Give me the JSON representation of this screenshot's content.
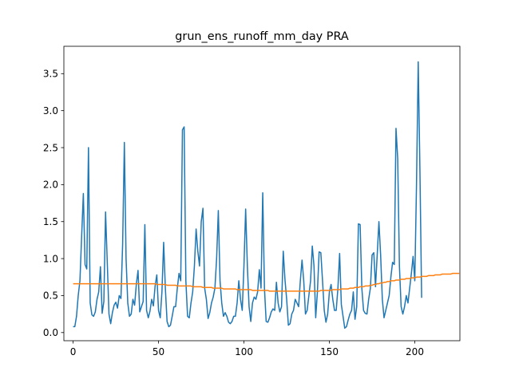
{
  "chart_data": {
    "type": "line",
    "title": "grun_ens_runoff_mm_day PRA",
    "xlabel": "",
    "ylabel": "",
    "xlim": [
      -5.4,
      226.4
    ],
    "ylim": [
      -0.11,
      3.87
    ],
    "x_ticks": [
      0,
      50,
      100,
      150,
      200
    ],
    "y_ticks": [
      0.0,
      0.5,
      1.0,
      1.5,
      2.0,
      2.5,
      3.0,
      3.5
    ],
    "y_tick_labels": [
      "0.0",
      "0.5",
      "1.0",
      "1.5",
      "2.0",
      "2.5",
      "3.0",
      "3.5"
    ],
    "grid": false,
    "legend": "none",
    "series": [
      {
        "color": "#1f77b4",
        "x_start": 0,
        "values": [
          0.08,
          0.08,
          0.22,
          0.5,
          0.7,
          1.3,
          1.88,
          0.92,
          0.86,
          2.5,
          0.4,
          0.24,
          0.22,
          0.28,
          0.45,
          0.55,
          0.89,
          0.26,
          0.42,
          1.63,
          0.95,
          0.25,
          0.12,
          0.27,
          0.37,
          0.41,
          0.33,
          0.5,
          0.46,
          1.2,
          2.57,
          1.0,
          0.4,
          0.22,
          0.25,
          0.45,
          0.37,
          0.65,
          0.84,
          0.28,
          0.35,
          0.42,
          1.46,
          0.3,
          0.2,
          0.29,
          0.45,
          0.36,
          0.63,
          0.78,
          0.3,
          0.2,
          0.55,
          1.22,
          0.6,
          0.15,
          0.08,
          0.1,
          0.22,
          0.35,
          0.35,
          0.6,
          0.8,
          0.7,
          2.74,
          2.78,
          0.7,
          0.22,
          0.2,
          0.4,
          0.55,
          0.9,
          1.4,
          1.1,
          0.9,
          1.5,
          1.68,
          0.6,
          0.45,
          0.19,
          0.27,
          0.4,
          0.48,
          0.6,
          1.0,
          1.65,
          0.7,
          0.4,
          0.22,
          0.27,
          0.22,
          0.14,
          0.12,
          0.15,
          0.22,
          0.22,
          0.4,
          0.7,
          0.45,
          0.3,
          0.9,
          1.67,
          0.9,
          0.35,
          0.15,
          0.4,
          0.48,
          0.45,
          0.55,
          0.85,
          0.6,
          1.89,
          0.6,
          0.15,
          0.14,
          0.2,
          0.28,
          0.32,
          0.3,
          0.68,
          0.4,
          0.28,
          0.35,
          1.1,
          0.72,
          0.45,
          0.1,
          0.12,
          0.25,
          0.3,
          0.45,
          0.4,
          0.35,
          0.7,
          0.98,
          0.7,
          0.25,
          0.3,
          0.5,
          0.7,
          1.17,
          0.9,
          0.2,
          0.55,
          1.09,
          1.08,
          0.7,
          0.3,
          0.14,
          0.25,
          0.55,
          0.65,
          0.45,
          0.3,
          0.3,
          0.6,
          1.07,
          0.38,
          0.22,
          0.06,
          0.08,
          0.17,
          0.25,
          0.3,
          0.55,
          0.18,
          0.35,
          1.47,
          1.46,
          0.6,
          0.3,
          0.26,
          0.25,
          0.45,
          0.6,
          1.05,
          1.08,
          0.62,
          1.05,
          1.5,
          1.05,
          0.45,
          0.2,
          0.3,
          0.4,
          0.5,
          0.75,
          0.95,
          0.92,
          2.76,
          2.35,
          0.9,
          0.35,
          0.25,
          0.35,
          0.5,
          0.4,
          0.6,
          0.8,
          1.03,
          0.7,
          2.0,
          3.66,
          2.2,
          0.47
        ]
      },
      {
        "color": "#ff7f0e",
        "x_start": 0,
        "values": [
          0.66,
          0.66,
          0.66,
          0.66,
          0.66,
          0.66,
          0.66,
          0.66,
          0.66,
          0.66,
          0.66,
          0.66,
          0.66,
          0.66,
          0.66,
          0.66,
          0.66,
          0.66,
          0.66,
          0.66,
          0.66,
          0.66,
          0.66,
          0.66,
          0.66,
          0.66,
          0.66,
          0.66,
          0.66,
          0.66,
          0.66,
          0.66,
          0.66,
          0.66,
          0.66,
          0.66,
          0.66,
          0.66,
          0.66,
          0.66,
          0.66,
          0.66,
          0.66,
          0.66,
          0.66,
          0.66,
          0.66,
          0.66,
          0.66,
          0.65,
          0.65,
          0.65,
          0.65,
          0.65,
          0.65,
          0.64,
          0.64,
          0.64,
          0.64,
          0.64,
          0.64,
          0.63,
          0.63,
          0.63,
          0.63,
          0.63,
          0.63,
          0.63,
          0.63,
          0.63,
          0.62,
          0.62,
          0.62,
          0.62,
          0.62,
          0.62,
          0.61,
          0.61,
          0.61,
          0.61,
          0.61,
          0.61,
          0.6,
          0.6,
          0.6,
          0.6,
          0.6,
          0.6,
          0.59,
          0.59,
          0.59,
          0.59,
          0.59,
          0.59,
          0.59,
          0.59,
          0.58,
          0.58,
          0.58,
          0.58,
          0.58,
          0.58,
          0.58,
          0.58,
          0.58,
          0.57,
          0.57,
          0.57,
          0.57,
          0.57,
          0.57,
          0.57,
          0.57,
          0.57,
          0.57,
          0.56,
          0.56,
          0.56,
          0.56,
          0.56,
          0.56,
          0.56,
          0.56,
          0.56,
          0.56,
          0.56,
          0.56,
          0.56,
          0.56,
          0.56,
          0.56,
          0.56,
          0.56,
          0.56,
          0.56,
          0.56,
          0.56,
          0.56,
          0.56,
          0.56,
          0.56,
          0.56,
          0.56,
          0.56,
          0.56,
          0.57,
          0.57,
          0.57,
          0.57,
          0.57,
          0.57,
          0.57,
          0.58,
          0.58,
          0.58,
          0.58,
          0.58,
          0.59,
          0.59,
          0.59,
          0.59,
          0.59,
          0.6,
          0.6,
          0.6,
          0.61,
          0.61,
          0.61,
          0.62,
          0.62,
          0.62,
          0.63,
          0.63,
          0.63,
          0.64,
          0.64,
          0.65,
          0.65,
          0.66,
          0.66,
          0.67,
          0.67,
          0.68,
          0.68,
          0.69,
          0.69,
          0.7,
          0.7,
          0.7,
          0.71,
          0.71,
          0.71,
          0.72,
          0.72,
          0.72,
          0.73,
          0.73,
          0.73,
          0.74,
          0.74,
          0.74,
          0.75,
          0.75,
          0.75,
          0.76,
          0.76,
          0.76,
          0.76,
          0.77,
          0.77,
          0.77,
          0.77,
          0.78,
          0.78,
          0.78,
          0.78,
          0.79,
          0.79,
          0.79,
          0.79,
          0.79,
          0.79,
          0.8,
          0.8,
          0.8,
          0.8,
          0.8
        ]
      }
    ]
  }
}
